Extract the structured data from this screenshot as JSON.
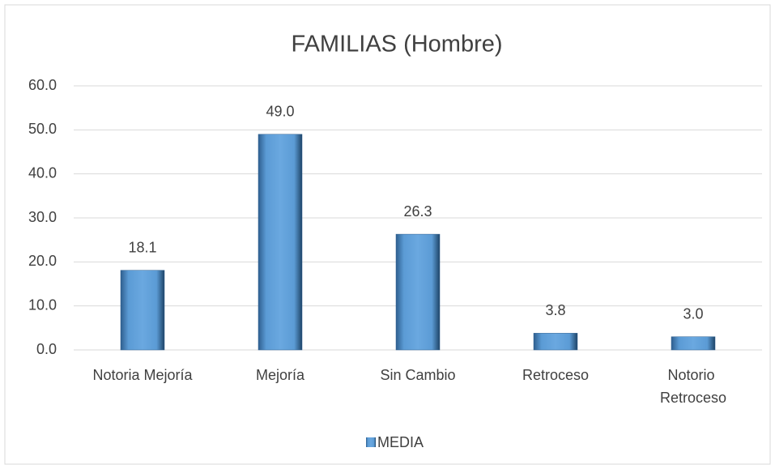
{
  "chart_data": {
    "type": "bar",
    "title": "FAMILIAS (Hombre)",
    "categories": [
      "Notoria Mejoría",
      "Mejoría",
      "Sin Cambio",
      "Retroceso",
      "Notorio Retroceso"
    ],
    "series": [
      {
        "name": "MEDIA",
        "color": "#5b9bd5",
        "values": [
          18.1,
          49.0,
          26.3,
          3.8,
          3.0
        ],
        "value_labels": [
          "18.1",
          "49.0",
          "26.3",
          "3.8",
          "3.0"
        ]
      }
    ],
    "ylim": [
      0,
      60
    ],
    "yticks": [
      {
        "value": 0,
        "label": "0.0"
      },
      {
        "value": 10,
        "label": "10.0"
      },
      {
        "value": 20,
        "label": "20.0"
      },
      {
        "value": 30,
        "label": "30.0"
      },
      {
        "value": 40,
        "label": "40.0"
      },
      {
        "value": 50,
        "label": "50.0"
      },
      {
        "value": 60,
        "label": "60.0"
      }
    ],
    "grid": true,
    "legend": "bottom"
  }
}
